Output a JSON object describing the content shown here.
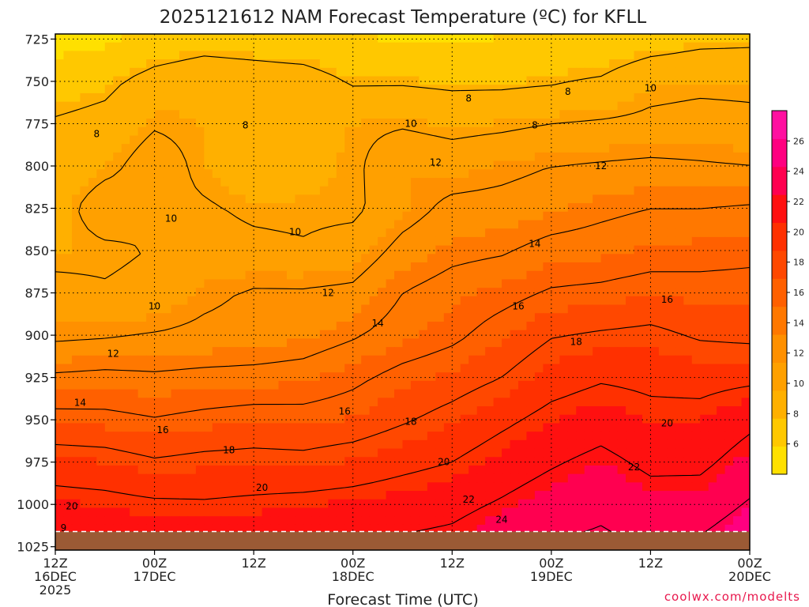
{
  "chart_data": {
    "type": "heatmap",
    "title": "2025121612 NAM Forecast Temperature (ºC) for KFLL",
    "xlabel": "Forecast Time (UTC)",
    "ylabel": "",
    "x_ticks": [
      {
        "hour": 0,
        "lines": [
          "12Z",
          "16DEC",
          "2025"
        ]
      },
      {
        "hour": 12,
        "lines": [
          "00Z",
          "17DEC"
        ]
      },
      {
        "hour": 24,
        "lines": [
          "12Z"
        ]
      },
      {
        "hour": 36,
        "lines": [
          "00Z",
          "18DEC"
        ]
      },
      {
        "hour": 48,
        "lines": [
          "12Z"
        ]
      },
      {
        "hour": 60,
        "lines": [
          "00Z",
          "19DEC"
        ]
      },
      {
        "hour": 72,
        "lines": [
          "12Z"
        ]
      },
      {
        "hour": 84,
        "lines": [
          "00Z",
          "20DEC"
        ]
      }
    ],
    "xlim_hours": [
      0,
      84
    ],
    "y_ticks": [
      "725",
      "750",
      "775",
      "800",
      "825",
      "850",
      "875",
      "900",
      "925",
      "950",
      "975",
      "1000",
      "1025"
    ],
    "ylim_hpa": [
      722,
      1027
    ],
    "grid": true,
    "ground_surface_hpa": 1016,
    "colorbar": {
      "ticks": [
        "6",
        "8",
        "10",
        "12",
        "14",
        "16",
        "18",
        "20",
        "22",
        "24",
        "26"
      ],
      "range": [
        4,
        28
      ],
      "colors": [
        "#ffe000",
        "#ffc800",
        "#ffb000",
        "#ffa000",
        "#ff9000",
        "#ff7800",
        "#ff6000",
        "#ff4800",
        "#ff3000",
        "#ff1010",
        "#ff0050",
        "#ff0080",
        "#ff10a0"
      ]
    },
    "temperature_profiles": [
      {
        "hour": 0,
        "temps": [
          5.0,
          7.0,
          8.2,
          8.5,
          9.0,
          9.4,
          10.6,
          11.6,
          14.3,
          16.6,
          19.0,
          20.8,
          21.6
        ]
      },
      {
        "hour": 6,
        "temps": [
          5.5,
          7.5,
          8.6,
          9.4,
          11.2,
          9.6,
          10.2,
          11.8,
          14.5,
          16.5,
          18.8,
          20.6,
          21.5
        ]
      },
      {
        "hour": 12,
        "temps": [
          6.5,
          8.8,
          9.8,
          11.0,
          10.4,
          10.1,
          10.6,
          12.1,
          14.3,
          16.1,
          18.2,
          20.3,
          21.3
        ]
      },
      {
        "hour": 18,
        "temps": [
          7.0,
          9.5,
          9.5,
          9.5,
          10.2,
          10.6,
          11.6,
          12.4,
          14.5,
          16.5,
          18.5,
          20.2,
          21.3
        ]
      },
      {
        "hour": 24,
        "temps": [
          6.8,
          9.2,
          8.8,
          8.6,
          9.7,
          10.4,
          12.2,
          12.6,
          14.6,
          16.8,
          18.6,
          20.4,
          21.5
        ]
      },
      {
        "hour": 30,
        "temps": [
          6.5,
          9.0,
          9.2,
          9.4,
          9.6,
          10.2,
          12.2,
          13.0,
          14.8,
          16.7,
          18.5,
          20.6,
          21.6
        ]
      },
      {
        "hour": 36,
        "temps": [
          6.0,
          7.8,
          9.6,
          9.6,
          9.6,
          10.8,
          12.4,
          13.8,
          15.6,
          17.0,
          18.9,
          20.8,
          21.7
        ]
      },
      {
        "hour": 42,
        "temps": [
          5.8,
          7.8,
          9.8,
          11.4,
          11.2,
          12.6,
          14.0,
          14.8,
          16.6,
          17.8,
          19.5,
          21.1,
          22.4
        ]
      },
      {
        "hour": 48,
        "temps": [
          5.5,
          7.6,
          9.4,
          11.0,
          12.5,
          13.5,
          14.8,
          15.6,
          17.2,
          18.6,
          20.0,
          21.5,
          22.6
        ]
      },
      {
        "hour": 54,
        "temps": [
          6.0,
          7.6,
          9.6,
          11.5,
          12.6,
          13.8,
          15.4,
          16.8,
          18.0,
          19.6,
          21.0,
          22.2,
          23.4
        ]
      },
      {
        "hour": 60,
        "temps": [
          7.0,
          7.8,
          10.0,
          12.0,
          13.0,
          14.6,
          16.2,
          17.9,
          19.2,
          20.6,
          21.8,
          23.0,
          24.2
        ]
      },
      {
        "hour": 66,
        "temps": [
          6.5,
          8.2,
          10.2,
          12.2,
          13.6,
          14.8,
          16.4,
          18.2,
          19.8,
          21.2,
          22.5,
          23.6,
          24.4
        ]
      },
      {
        "hour": 72,
        "temps": [
          7.0,
          9.4,
          10.4,
          12.4,
          14.0,
          15.2,
          16.8,
          18.4,
          19.6,
          20.5,
          21.6,
          22.8,
          24.0
        ]
      },
      {
        "hour": 78,
        "temps": [
          7.5,
          9.6,
          10.6,
          12.2,
          14.0,
          15.4,
          16.6,
          17.8,
          19.4,
          20.6,
          21.6,
          22.9,
          24.4
        ]
      },
      {
        "hour": 84,
        "temps": [
          7.6,
          9.6,
          10.4,
          12.0,
          14.2,
          15.6,
          16.6,
          17.6,
          19.6,
          21.6,
          22.8,
          24.2,
          25.6
        ]
      }
    ],
    "contour_labels": [
      {
        "text": "8",
        "hour": 5,
        "hpa": 781
      },
      {
        "text": "8",
        "hour": 23,
        "hpa": 776
      },
      {
        "text": "8",
        "hour": 50,
        "hpa": 760
      },
      {
        "text": "8",
        "hour": 58,
        "hpa": 776
      },
      {
        "text": "8",
        "hour": 62,
        "hpa": 756
      },
      {
        "text": "10",
        "hour": 72,
        "hpa": 754
      },
      {
        "text": "10",
        "hour": 43,
        "hpa": 775
      },
      {
        "text": "12",
        "hour": 46,
        "hpa": 798
      },
      {
        "text": "12",
        "hour": 66,
        "hpa": 800
      },
      {
        "text": "10",
        "hour": 14,
        "hpa": 831
      },
      {
        "text": "10",
        "hour": 29,
        "hpa": 839
      },
      {
        "text": "14",
        "hour": 58,
        "hpa": 846
      },
      {
        "text": "10",
        "hour": 12,
        "hpa": 883
      },
      {
        "text": "12",
        "hour": 33,
        "hpa": 875
      },
      {
        "text": "16",
        "hour": 56,
        "hpa": 883
      },
      {
        "text": "16",
        "hour": 74,
        "hpa": 879
      },
      {
        "text": "14",
        "hour": 39,
        "hpa": 893
      },
      {
        "text": "12",
        "hour": 7,
        "hpa": 911
      },
      {
        "text": "18",
        "hour": 63,
        "hpa": 904
      },
      {
        "text": "14",
        "hour": 3,
        "hpa": 940
      },
      {
        "text": "16",
        "hour": 35,
        "hpa": 945
      },
      {
        "text": "16",
        "hour": 13,
        "hpa": 956
      },
      {
        "text": "18",
        "hour": 43,
        "hpa": 951
      },
      {
        "text": "18",
        "hour": 21,
        "hpa": 968
      },
      {
        "text": "20",
        "hour": 74,
        "hpa": 952
      },
      {
        "text": "20",
        "hour": 47,
        "hpa": 975
      },
      {
        "text": "20",
        "hour": 25,
        "hpa": 990
      },
      {
        "text": "22",
        "hour": 70,
        "hpa": 978
      },
      {
        "text": "22",
        "hour": 50,
        "hpa": 997
      },
      {
        "text": "20",
        "hour": 2,
        "hpa": 1001
      },
      {
        "text": "24",
        "hour": 54,
        "hpa": 1009
      },
      {
        "text": "9",
        "hour": 1,
        "hpa": 1014
      }
    ],
    "credit": "coolwx.com/modelts"
  }
}
